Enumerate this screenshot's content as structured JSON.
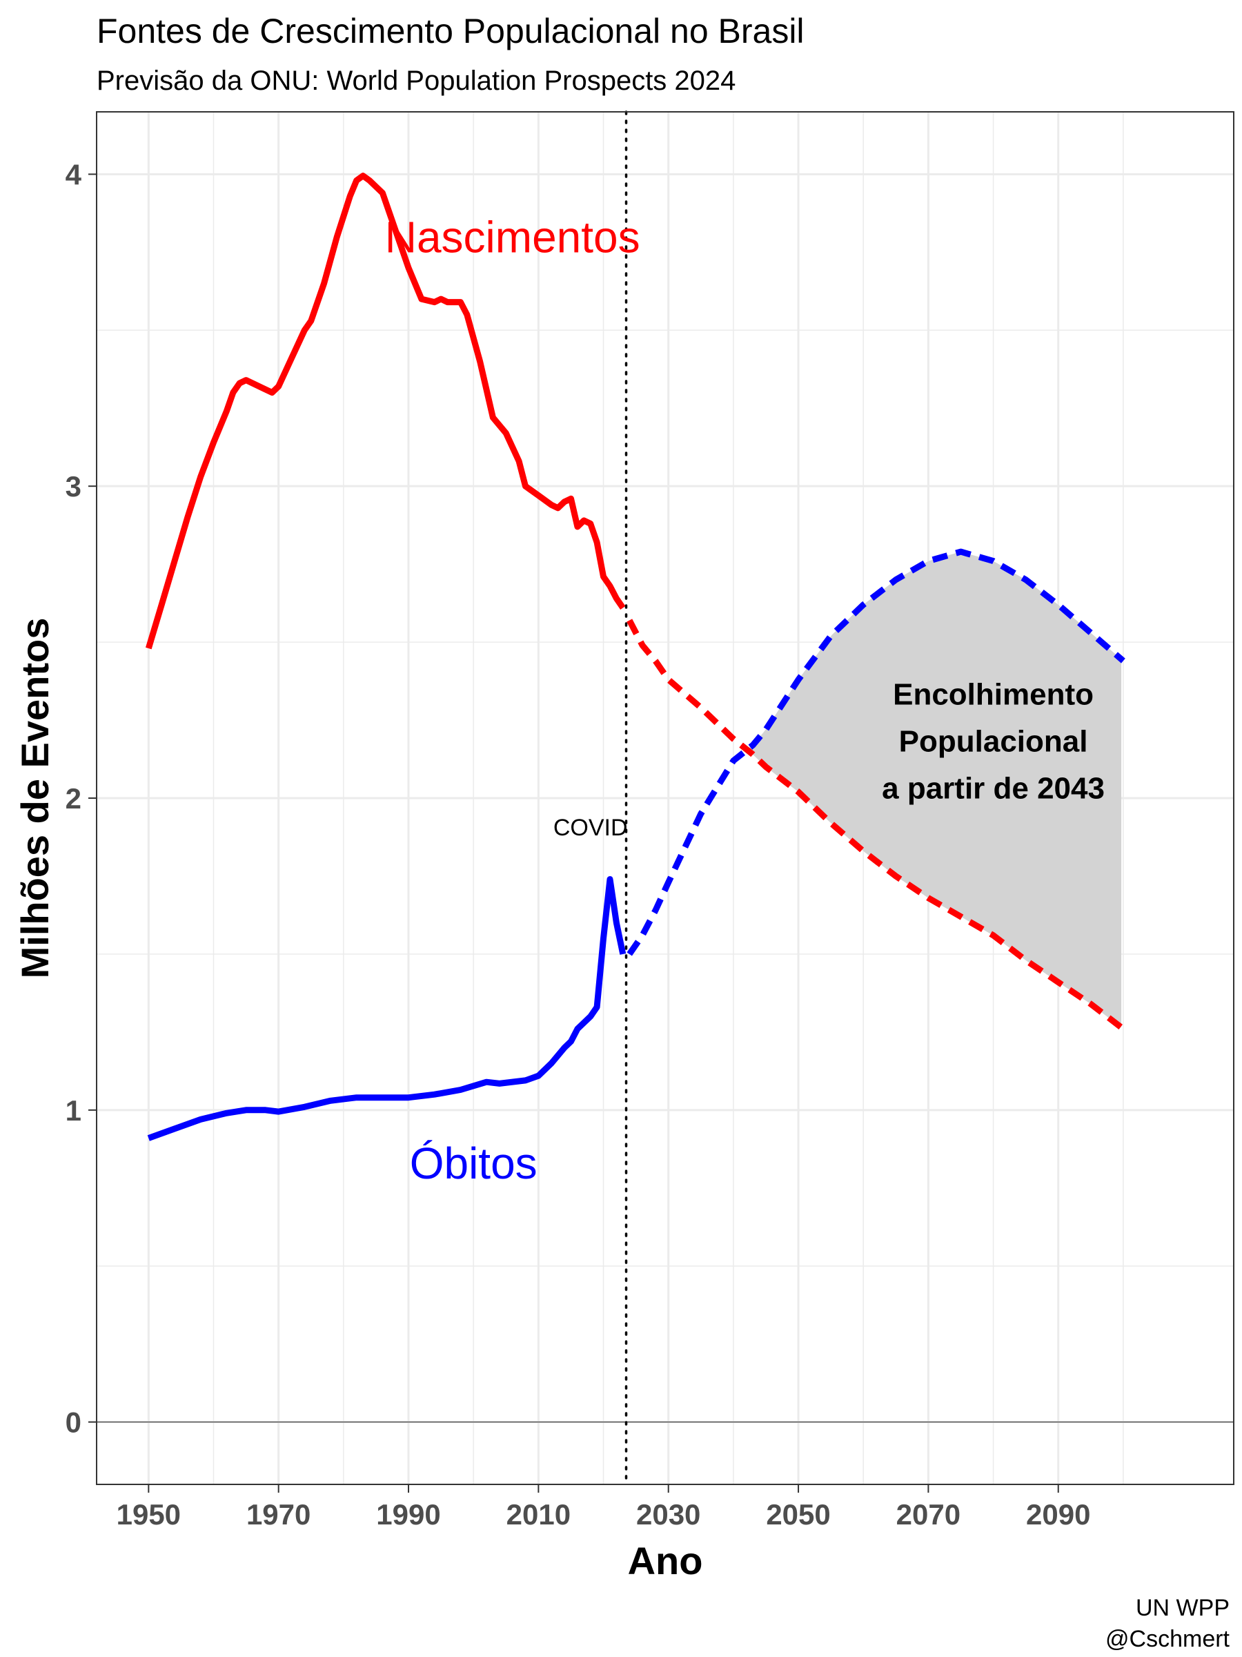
{
  "title": "Fontes de Crescimento Populacional no Brasil",
  "subtitle": "Previsão da ONU: World Population Prospects 2024",
  "caption": [
    "UN WPP",
    "@Cschmert"
  ],
  "colors": {
    "births": "#ff0000",
    "deaths": "#0000ff",
    "shade": "#d3d3d3",
    "grid": "#ebebeb",
    "panel_border": "#333333",
    "tick_text": "#4d4d4d"
  },
  "chart_data": {
    "type": "line",
    "xlabel": "Ano",
    "ylabel": "Milhões de Eventos",
    "xlim": [
      1942,
      2117
    ],
    "ylim": [
      -0.2,
      4.2
    ],
    "x_ticks": [
      1950,
      1970,
      1990,
      2010,
      2030,
      2050,
      2070,
      2090
    ],
    "y_ticks": [
      0,
      1,
      2,
      3,
      4
    ],
    "grid": true,
    "projection_start": 2023.5,
    "series": [
      {
        "name": "Nascimentos",
        "color": "#ff0000",
        "observed": [
          [
            1950,
            2.48
          ],
          [
            1952,
            2.62
          ],
          [
            1954,
            2.76
          ],
          [
            1956,
            2.9
          ],
          [
            1958,
            3.03
          ],
          [
            1960,
            3.14
          ],
          [
            1962,
            3.24
          ],
          [
            1963,
            3.3
          ],
          [
            1964,
            3.33
          ],
          [
            1965,
            3.34
          ],
          [
            1967,
            3.32
          ],
          [
            1969,
            3.3
          ],
          [
            1970,
            3.32
          ],
          [
            1972,
            3.41
          ],
          [
            1974,
            3.5
          ],
          [
            1975,
            3.53
          ],
          [
            1977,
            3.65
          ],
          [
            1979,
            3.8
          ],
          [
            1981,
            3.93
          ],
          [
            1982,
            3.98
          ],
          [
            1983,
            3.995
          ],
          [
            1984,
            3.98
          ],
          [
            1986,
            3.94
          ],
          [
            1988,
            3.82
          ],
          [
            1990,
            3.7
          ],
          [
            1992,
            3.6
          ],
          [
            1994,
            3.59
          ],
          [
            1995,
            3.6
          ],
          [
            1996,
            3.59
          ],
          [
            1998,
            3.59
          ],
          [
            1999,
            3.55
          ],
          [
            2001,
            3.4
          ],
          [
            2003,
            3.22
          ],
          [
            2005,
            3.17
          ],
          [
            2007,
            3.08
          ],
          [
            2008,
            3.0
          ],
          [
            2010,
            2.97
          ],
          [
            2012,
            2.94
          ],
          [
            2013,
            2.93
          ],
          [
            2014,
            2.95
          ],
          [
            2015,
            2.96
          ],
          [
            2016,
            2.87
          ],
          [
            2017,
            2.89
          ],
          [
            2018,
            2.88
          ],
          [
            2019,
            2.82
          ],
          [
            2020,
            2.71
          ],
          [
            2021,
            2.68
          ],
          [
            2022,
            2.64
          ],
          [
            2023,
            2.61
          ]
        ],
        "projected": [
          [
            2024,
            2.57
          ],
          [
            2026,
            2.49
          ],
          [
            2028,
            2.44
          ],
          [
            2030,
            2.38
          ],
          [
            2035,
            2.29
          ],
          [
            2040,
            2.19
          ],
          [
            2043,
            2.14
          ],
          [
            2045,
            2.1
          ],
          [
            2050,
            2.02
          ],
          [
            2055,
            1.92
          ],
          [
            2060,
            1.83
          ],
          [
            2065,
            1.75
          ],
          [
            2070,
            1.68
          ],
          [
            2075,
            1.62
          ],
          [
            2080,
            1.56
          ],
          [
            2085,
            1.48
          ],
          [
            2090,
            1.41
          ],
          [
            2095,
            1.34
          ],
          [
            2100,
            1.26
          ]
        ]
      },
      {
        "name": "Óbitos",
        "color": "#0000ff",
        "observed": [
          [
            1950,
            0.91
          ],
          [
            1954,
            0.94
          ],
          [
            1958,
            0.97
          ],
          [
            1962,
            0.99
          ],
          [
            1965,
            1.0
          ],
          [
            1968,
            1.0
          ],
          [
            1970,
            0.995
          ],
          [
            1974,
            1.01
          ],
          [
            1978,
            1.03
          ],
          [
            1982,
            1.04
          ],
          [
            1986,
            1.04
          ],
          [
            1990,
            1.04
          ],
          [
            1994,
            1.05
          ],
          [
            1998,
            1.065
          ],
          [
            2002,
            1.09
          ],
          [
            2004,
            1.085
          ],
          [
            2008,
            1.095
          ],
          [
            2010,
            1.11
          ],
          [
            2012,
            1.15
          ],
          [
            2014,
            1.2
          ],
          [
            2015,
            1.22
          ],
          [
            2016,
            1.26
          ],
          [
            2018,
            1.3
          ],
          [
            2019,
            1.33
          ],
          [
            2020,
            1.55
          ],
          [
            2021,
            1.74
          ],
          [
            2022,
            1.6
          ],
          [
            2023,
            1.5
          ]
        ],
        "projected": [
          [
            2024,
            1.5
          ],
          [
            2026,
            1.56
          ],
          [
            2028,
            1.64
          ],
          [
            2030,
            1.73
          ],
          [
            2035,
            1.95
          ],
          [
            2040,
            2.12
          ],
          [
            2043,
            2.17
          ],
          [
            2045,
            2.22
          ],
          [
            2050,
            2.38
          ],
          [
            2055,
            2.52
          ],
          [
            2060,
            2.62
          ],
          [
            2065,
            2.7
          ],
          [
            2070,
            2.76
          ],
          [
            2075,
            2.79
          ],
          [
            2080,
            2.76
          ],
          [
            2085,
            2.7
          ],
          [
            2090,
            2.62
          ],
          [
            2095,
            2.53
          ],
          [
            2100,
            2.44
          ]
        ]
      }
    ],
    "annotations": [
      {
        "id": "births",
        "text": "Nascimentos",
        "x": 2006,
        "y": 3.75,
        "color": "#ff0000"
      },
      {
        "id": "deaths",
        "text": "Óbitos",
        "x": 2000,
        "y": 0.78,
        "color": "#0000ff"
      },
      {
        "id": "covid",
        "text": "COVID",
        "x": 2018,
        "y": 1.88,
        "color": "#000000"
      },
      {
        "id": "shrink",
        "lines": [
          "Encolhimento",
          "Populacional",
          "a partir de 2043"
        ],
        "x": 2080,
        "y": 2.3,
        "color": "#000000"
      }
    ]
  }
}
